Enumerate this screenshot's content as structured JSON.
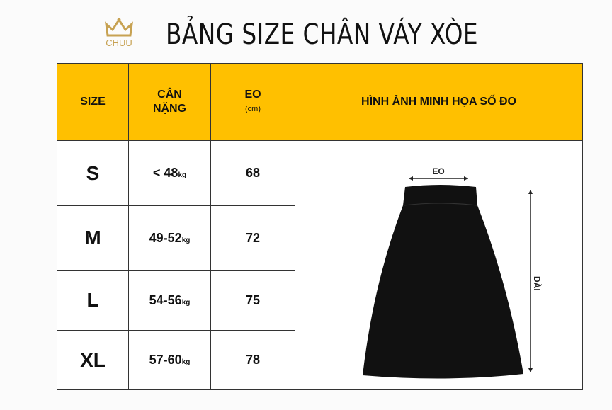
{
  "logo": {
    "text": "CHUU",
    "color": "#c7a253"
  },
  "title": "BẢNG SIZE CHÂN VÁY XÒE",
  "header": {
    "size": "SIZE",
    "weight_line1": "CÂN",
    "weight_line2": "NẶNG",
    "waist": "EO",
    "waist_unit": "(cm)",
    "image": "HÌNH ẢNH MINH HỌA SỐ ĐO",
    "color": "#ffc000"
  },
  "rows": [
    {
      "size": "S",
      "weight": "< 48",
      "unit": "kg",
      "waist": "68"
    },
    {
      "size": "M",
      "weight": "49-52",
      "unit": "kg",
      "waist": "72"
    },
    {
      "size": "L",
      "weight": "54-56",
      "unit": "kg",
      "waist": "75"
    },
    {
      "size": "XL",
      "weight": "57-60",
      "unit": "kg",
      "waist": "78"
    }
  ],
  "illustration": {
    "waist_label": "EO",
    "length_label": "DÀI"
  }
}
